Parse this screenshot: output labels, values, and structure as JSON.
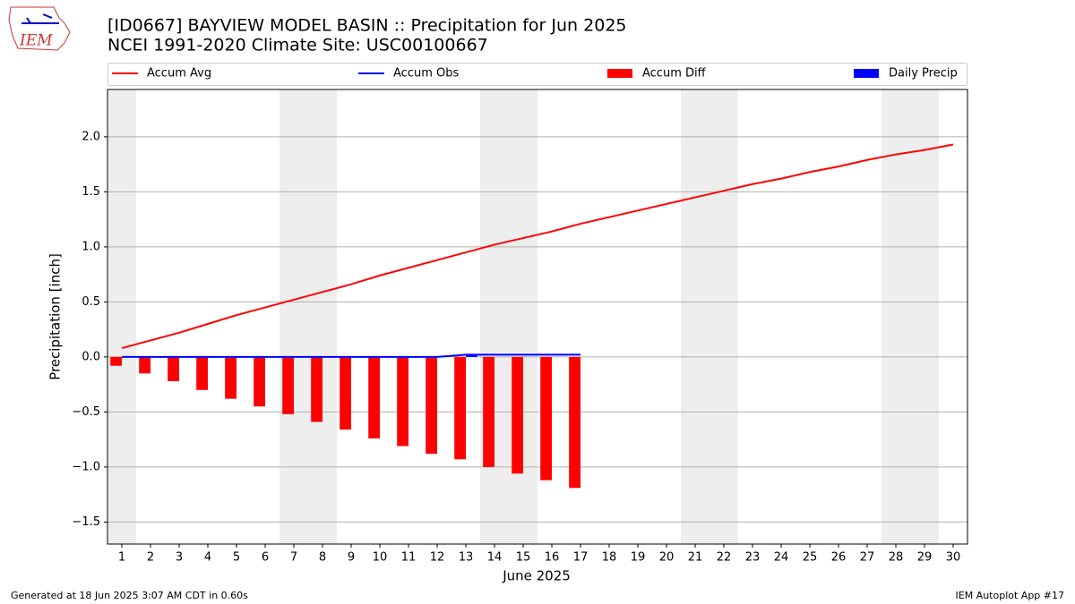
{
  "chart_data": {
    "type": "line",
    "title": "[ID0667] BAYVIEW MODEL BASIN :: Precipitation for Jun 2025",
    "subtitle": "NCEI 1991-2020 Climate Site: USC00100667",
    "logo_text": "IEM",
    "x_label": "June 2025",
    "y_label": "Precipitation [inch]",
    "footer_left": "Generated at 18 Jun 2025 3:07 AM CDT in 0.60s",
    "footer_right": "IEM Autoplot App #17",
    "x": [
      1,
      2,
      3,
      4,
      5,
      6,
      7,
      8,
      9,
      10,
      11,
      12,
      13,
      14,
      15,
      16,
      17,
      18,
      19,
      20,
      21,
      22,
      23,
      24,
      25,
      26,
      27,
      28,
      29,
      30
    ],
    "xlim": [
      0.5,
      30.5
    ],
    "xticks": [
      1,
      2,
      3,
      4,
      5,
      6,
      7,
      8,
      9,
      10,
      11,
      12,
      13,
      14,
      15,
      16,
      17,
      18,
      19,
      20,
      21,
      22,
      23,
      24,
      25,
      26,
      27,
      28,
      29,
      30
    ],
    "ylim": [
      -1.7,
      2.43
    ],
    "yticks": [
      {
        "value": -1.5,
        "label": "−1.5"
      },
      {
        "value": -1,
        "label": "−1.0"
      },
      {
        "value": -0.5,
        "label": "−0.5"
      },
      {
        "value": 0,
        "label": "0.0"
      },
      {
        "value": 0.5,
        "label": "0.5"
      },
      {
        "value": 1,
        "label": "1.0"
      },
      {
        "value": 1.5,
        "label": "1.5"
      },
      {
        "value": 2,
        "label": "2.0"
      }
    ],
    "grid": true,
    "shaded_days": [
      1,
      7,
      8,
      14,
      15,
      21,
      22,
      28,
      29
    ],
    "series": [
      {
        "name": "Accum Avg",
        "kind": "line",
        "color": "#ff0000",
        "values": [
          0.08,
          0.15,
          0.22,
          0.3,
          0.38,
          0.45,
          0.52,
          0.59,
          0.66,
          0.74,
          0.81,
          0.88,
          0.95,
          1.02,
          1.08,
          1.14,
          1.21,
          1.27,
          1.33,
          1.39,
          1.45,
          1.51,
          1.57,
          1.62,
          1.68,
          1.73,
          1.79,
          1.84,
          1.88,
          1.93
        ]
      },
      {
        "name": "Accum Obs",
        "kind": "line",
        "color": "#0000ff",
        "values": [
          0,
          0,
          0,
          0,
          0,
          0,
          0,
          0,
          0,
          0,
          0,
          0,
          0.02,
          0.02,
          0.02,
          0.02,
          0.02,
          null,
          null,
          null,
          null,
          null,
          null,
          null,
          null,
          null,
          null,
          null,
          null,
          null
        ]
      },
      {
        "name": "Accum Diff",
        "kind": "bar",
        "side": "left",
        "color": "#ff0000",
        "values": [
          -0.08,
          -0.15,
          -0.22,
          -0.3,
          -0.38,
          -0.45,
          -0.52,
          -0.59,
          -0.66,
          -0.74,
          -0.81,
          -0.88,
          -0.93,
          -1.0,
          -1.06,
          -1.12,
          -1.19,
          null,
          null,
          null,
          null,
          null,
          null,
          null,
          null,
          null,
          null,
          null,
          null,
          null
        ]
      },
      {
        "name": "Daily Precip",
        "kind": "bar",
        "side": "right",
        "color": "#0000ff",
        "values": [
          0,
          0,
          0,
          0,
          0,
          0,
          0,
          0,
          0,
          0,
          0,
          0,
          0.02,
          0,
          0,
          0,
          0,
          null,
          null,
          null,
          null,
          null,
          null,
          null,
          null,
          null,
          null,
          null,
          null,
          null
        ]
      }
    ]
  }
}
